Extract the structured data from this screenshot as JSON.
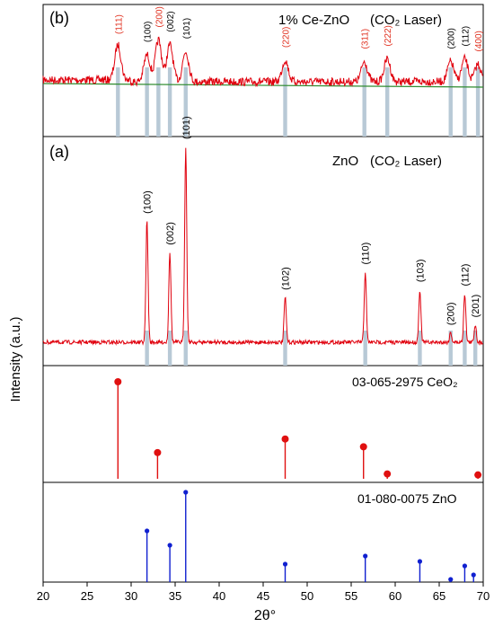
{
  "colors": {
    "red_trace": "#e0000d",
    "green_baseline": "#2e8b2e",
    "ref_bar": "#b8c9d6",
    "ceo2_marker": "#e01010",
    "zno_marker": "#1020d0",
    "red_label": "#e0301f",
    "black": "#000000"
  },
  "y_axis_label": "Intensity (a.u.)",
  "x_axis_label": "2θ°",
  "x_ticks": [
    "20",
    "25",
    "30",
    "35",
    "40",
    "45",
    "50",
    "55",
    "60",
    "65",
    "70"
  ],
  "chart_data": [
    {
      "type": "line",
      "panel": "(b)",
      "title": "1% Ce-ZnO",
      "condition": "(CO₂ Laser)",
      "xlim": [
        20,
        70
      ],
      "y_scale": "relative (arbitrary units)",
      "reference_bars_x": [
        28.5,
        31.8,
        33.1,
        34.4,
        36.2,
        47.5,
        56.5,
        59.1,
        66.3,
        67.9,
        69.4
      ],
      "peaks": [
        {
          "x": 28.5,
          "y": 0.52,
          "label": "(111)",
          "color": "red"
        },
        {
          "x": 31.8,
          "y": 0.4,
          "label": "(100)",
          "color": "black"
        },
        {
          "x": 33.1,
          "y": 0.62,
          "label": "(200)",
          "color": "red"
        },
        {
          "x": 34.4,
          "y": 0.55,
          "label": "(002)",
          "color": "black"
        },
        {
          "x": 36.2,
          "y": 0.45,
          "label": "(101)",
          "color": "black"
        },
        {
          "x": 47.5,
          "y": 0.32,
          "label": "(220)",
          "color": "red"
        },
        {
          "x": 56.5,
          "y": 0.3,
          "label": "(311)",
          "color": "red"
        },
        {
          "x": 59.1,
          "y": 0.34,
          "label": "(222)",
          "color": "red"
        },
        {
          "x": 66.3,
          "y": 0.3,
          "label": "(200)",
          "color": "black"
        },
        {
          "x": 67.9,
          "y": 0.34,
          "label": "(112)",
          "color": "black"
        },
        {
          "x": 69.4,
          "y": 0.26,
          "label": "(400)",
          "color": "red"
        }
      ]
    },
    {
      "type": "line",
      "panel": "(a)",
      "title": "ZnO",
      "condition": "(CO₂ Laser)",
      "xlim": [
        20,
        70
      ],
      "y_scale": "relative (arbitrary units)",
      "reference_bars_x": [
        31.8,
        34.4,
        36.2,
        47.5,
        56.6,
        62.8,
        66.3,
        67.9,
        69.1
      ],
      "peaks": [
        {
          "x": 31.8,
          "y": 0.62,
          "label": "(100)"
        },
        {
          "x": 34.4,
          "y": 0.46,
          "label": "(002)"
        },
        {
          "x": 36.2,
          "y": 1.0,
          "label": "(101)"
        },
        {
          "x": 47.5,
          "y": 0.23,
          "label": "(102)"
        },
        {
          "x": 56.6,
          "y": 0.36,
          "label": "(110)"
        },
        {
          "x": 62.8,
          "y": 0.27,
          "label": "(103)"
        },
        {
          "x": 66.3,
          "y": 0.05,
          "label": "(200)"
        },
        {
          "x": 67.9,
          "y": 0.25,
          "label": "(112)"
        },
        {
          "x": 69.1,
          "y": 0.09,
          "label": "(201)"
        }
      ]
    },
    {
      "type": "scatter",
      "title": "03-065-2975 CeO₂",
      "style": "stem",
      "xlim": [
        20,
        70
      ],
      "x": [
        28.5,
        33.0,
        47.5,
        56.4,
        59.1,
        69.4
      ],
      "y": [
        100,
        27,
        41,
        33,
        5,
        4
      ]
    },
    {
      "type": "scatter",
      "title": "01-080-0075 ZnO",
      "style": "stem",
      "xlim": [
        20,
        70
      ],
      "x": [
        31.8,
        34.4,
        36.2,
        47.5,
        56.6,
        62.8,
        66.3,
        67.9,
        68.9
      ],
      "y": [
        57,
        41,
        100,
        20,
        29,
        23,
        3,
        18,
        8
      ]
    }
  ]
}
